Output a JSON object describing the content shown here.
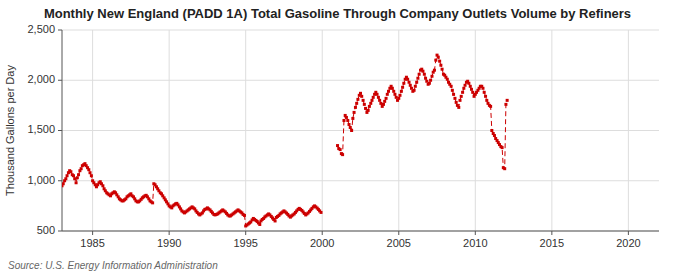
{
  "chart_data": {
    "type": "line",
    "title": "Monthly New England (PADD 1A) Total Gasoline Through Company Outlets Volume by Refiners",
    "ylabel": "Thousand Gallons per Day",
    "source": "Source: U.S. Energy Information Administration",
    "xlim": [
      1983,
      2022
    ],
    "ylim": [
      500,
      2500
    ],
    "xticks": [
      1985,
      1990,
      1995,
      2000,
      2005,
      2010,
      2015,
      2020
    ],
    "yticks": [
      500,
      {
        "value": 1000,
        "label": "1,000"
      },
      {
        "value": 1500,
        "label": "1,500"
      },
      {
        "value": 2000,
        "label": "2,000"
      },
      {
        "value": 2500,
        "label": "2,500"
      }
    ],
    "grid": true,
    "marker": "square",
    "line_style": "dashed",
    "series": [
      {
        "color": "#cc0000",
        "x": [
          1983.0,
          1983.08,
          1983.17,
          1983.25,
          1983.33,
          1983.42,
          1983.5,
          1983.58,
          1983.67,
          1983.75,
          1983.83,
          1983.92,
          1984.0,
          1984.08,
          1984.17,
          1984.25,
          1984.33,
          1984.42,
          1984.5,
          1984.58,
          1984.67,
          1984.75,
          1984.83,
          1984.92,
          1985.0,
          1985.08,
          1985.17,
          1985.25,
          1985.33,
          1985.42,
          1985.5,
          1985.58,
          1985.67,
          1985.75,
          1985.83,
          1985.92,
          1986.0,
          1986.08,
          1986.17,
          1986.25,
          1986.33,
          1986.42,
          1986.5,
          1986.58,
          1986.67,
          1986.75,
          1986.83,
          1986.92,
          1987.0,
          1987.08,
          1987.17,
          1987.25,
          1987.33,
          1987.42,
          1987.5,
          1987.58,
          1987.67,
          1987.75,
          1987.83,
          1987.92,
          1988.0,
          1988.08,
          1988.17,
          1988.25,
          1988.33,
          1988.42,
          1988.5,
          1988.58,
          1988.67,
          1988.75,
          1988.83,
          1988.92,
          1989.0,
          1989.08,
          1989.17,
          1989.25,
          1989.33,
          1989.42,
          1989.5,
          1989.58,
          1989.67,
          1989.75,
          1989.83,
          1989.92,
          1990.0,
          1990.08,
          1990.17,
          1990.25,
          1990.33,
          1990.42,
          1990.5,
          1990.58,
          1990.67,
          1990.75,
          1990.83,
          1990.92,
          1991.0,
          1991.08,
          1991.17,
          1991.25,
          1991.33,
          1991.42,
          1991.5,
          1991.58,
          1991.67,
          1991.75,
          1991.83,
          1991.92,
          1992.0,
          1992.08,
          1992.17,
          1992.25,
          1992.33,
          1992.42,
          1992.5,
          1992.58,
          1992.67,
          1992.75,
          1992.83,
          1992.92,
          1993.0,
          1993.08,
          1993.17,
          1993.25,
          1993.33,
          1993.42,
          1993.5,
          1993.58,
          1993.67,
          1993.75,
          1993.83,
          1993.92,
          1994.0,
          1994.08,
          1994.17,
          1994.25,
          1994.33,
          1994.42,
          1994.5,
          1994.58,
          1994.67,
          1994.75,
          1994.83,
          1994.92,
          1995.0,
          1995.08,
          1995.17,
          1995.25,
          1995.33,
          1995.42,
          1995.5,
          1995.58,
          1995.67,
          1995.75,
          1995.83,
          1995.92,
          1996.0,
          1996.08,
          1996.17,
          1996.25,
          1996.33,
          1996.42,
          1996.5,
          1996.58,
          1996.67,
          1996.75,
          1996.83,
          1996.92,
          1997.0,
          1997.08,
          1997.17,
          1997.25,
          1997.33,
          1997.42,
          1997.5,
          1997.58,
          1997.67,
          1997.75,
          1997.83,
          1997.92,
          1998.0,
          1998.08,
          1998.17,
          1998.25,
          1998.33,
          1998.42,
          1998.5,
          1998.58,
          1998.67,
          1998.75,
          1998.83,
          1998.92,
          1999.0,
          1999.08,
          1999.17,
          1999.25,
          1999.33,
          1999.42,
          1999.5,
          1999.58,
          1999.67,
          1999.75,
          1999.83,
          1999.92
        ],
        "values": [
          950,
          970,
          1000,
          1020,
          1050,
          1080,
          1100,
          1090,
          1060,
          1050,
          1020,
          980,
          1030,
          1060,
          1100,
          1120,
          1150,
          1160,
          1170,
          1150,
          1130,
          1110,
          1080,
          1050,
          1000,
          980,
          960,
          940,
          960,
          980,
          990,
          970,
          950,
          920,
          900,
          880,
          870,
          860,
          850,
          870,
          880,
          890,
          880,
          860,
          840,
          820,
          810,
          800,
          800,
          810,
          820,
          840,
          850,
          860,
          870,
          850,
          840,
          820,
          800,
          790,
          790,
          800,
          815,
          830,
          840,
          850,
          855,
          840,
          820,
          800,
          790,
          780,
          970,
          960,
          940,
          920,
          900,
          880,
          870,
          850,
          830,
          810,
          790,
          770,
          750,
          740,
          730,
          750,
          760,
          770,
          775,
          760,
          740,
          720,
          700,
          690,
          680,
          690,
          700,
          710,
          720,
          730,
          740,
          730,
          720,
          700,
          685,
          670,
          660,
          670,
          680,
          700,
          715,
          720,
          730,
          720,
          710,
          695,
          680,
          665,
          660,
          665,
          670,
          680,
          690,
          700,
          710,
          700,
          690,
          675,
          660,
          650,
          650,
          660,
          670,
          680,
          690,
          700,
          710,
          700,
          690,
          680,
          665,
          655,
          550,
          560,
          570,
          580,
          590,
          610,
          625,
          615,
          605,
          595,
          580,
          565,
          600,
          615,
          625,
          640,
          650,
          660,
          670,
          660,
          645,
          630,
          615,
          600,
          635,
          645,
          655,
          670,
          680,
          690,
          700,
          690,
          678,
          665,
          650,
          638,
          650,
          660,
          670,
          685,
          700,
          715,
          725,
          715,
          705,
          690,
          675,
          660,
          670,
          680,
          695,
          710,
          725,
          740,
          750,
          740,
          728,
          715,
          700,
          685
        ]
      },
      {
        "color": "#cc0000",
        "x": [
          2001.0,
          2001.08,
          2001.17,
          2001.25,
          2001.33,
          2001.42,
          2001.5,
          2001.58,
          2001.67,
          2001.75,
          2001.83,
          2001.92,
          2002.0,
          2002.08,
          2002.17,
          2002.25,
          2002.33,
          2002.42,
          2002.5,
          2002.58,
          2002.67,
          2002.75,
          2002.83,
          2002.92,
          2003.0,
          2003.08,
          2003.17,
          2003.25,
          2003.33,
          2003.42,
          2003.5,
          2003.58,
          2003.67,
          2003.75,
          2003.83,
          2003.92,
          2004.0,
          2004.08,
          2004.17,
          2004.25,
          2004.33,
          2004.42,
          2004.5,
          2004.58,
          2004.67,
          2004.75,
          2004.83,
          2004.92,
          2005.0,
          2005.08,
          2005.17,
          2005.25,
          2005.33,
          2005.42,
          2005.5,
          2005.58,
          2005.67,
          2005.75,
          2005.83,
          2005.92,
          2006.0,
          2006.08,
          2006.17,
          2006.25,
          2006.33,
          2006.42,
          2006.5,
          2006.58,
          2006.67,
          2006.75,
          2006.83,
          2006.92,
          2007.0,
          2007.08,
          2007.17,
          2007.25,
          2007.33,
          2007.42,
          2007.5,
          2007.58,
          2007.67,
          2007.75,
          2007.83,
          2007.92,
          2008.0,
          2008.08,
          2008.17,
          2008.25,
          2008.33,
          2008.42,
          2008.5,
          2008.58,
          2008.67,
          2008.75,
          2008.83,
          2008.92,
          2009.0,
          2009.08,
          2009.17,
          2009.25,
          2009.33,
          2009.42,
          2009.5,
          2009.58,
          2009.67,
          2009.75,
          2009.83,
          2009.92,
          2010.0,
          2010.08,
          2010.17,
          2010.25,
          2010.33,
          2010.42,
          2010.5,
          2010.58,
          2010.67,
          2010.75,
          2010.83,
          2010.92,
          2011.0,
          2011.08,
          2011.17,
          2011.25,
          2011.33,
          2011.42,
          2011.5,
          2011.58,
          2011.67,
          2011.75,
          2011.83,
          2011.92,
          2012.0,
          2012.08
        ],
        "values": [
          1350,
          1320,
          1310,
          1270,
          1260,
          1600,
          1650,
          1630,
          1600,
          1560,
          1530,
          1500,
          1620,
          1680,
          1730,
          1770,
          1810,
          1850,
          1870,
          1840,
          1800,
          1760,
          1720,
          1680,
          1700,
          1740,
          1770,
          1800,
          1830,
          1860,
          1880,
          1860,
          1830,
          1800,
          1770,
          1740,
          1760,
          1790,
          1820,
          1860,
          1890,
          1920,
          1940,
          1920,
          1890,
          1860,
          1830,
          1800,
          1820,
          1850,
          1890,
          1930,
          1970,
          2010,
          2030,
          2010,
          1980,
          1950,
          1920,
          1890,
          1900,
          1940,
          1980,
          2020,
          2060,
          2100,
          2110,
          2090,
          2060,
          2020,
          1990,
          1960,
          1970,
          2000,
          2040,
          2080,
          2100,
          2200,
          2250,
          2230,
          2190,
          2150,
          2110,
          2060,
          2050,
          2030,
          2010,
          1980,
          1960,
          1940,
          1900,
          1860,
          1820,
          1780,
          1750,
          1730,
          1800,
          1840,
          1880,
          1920,
          1950,
          1980,
          1990,
          1970,
          1940,
          1910,
          1880,
          1840,
          1860,
          1880,
          1900,
          1920,
          1940,
          1940,
          1920,
          1880,
          1840,
          1800,
          1770,
          1750,
          1740,
          1500,
          1470,
          1450,
          1420,
          1400,
          1380,
          1360,
          1340,
          1330,
          1130,
          1120,
          1760,
          1800
        ]
      }
    ]
  }
}
